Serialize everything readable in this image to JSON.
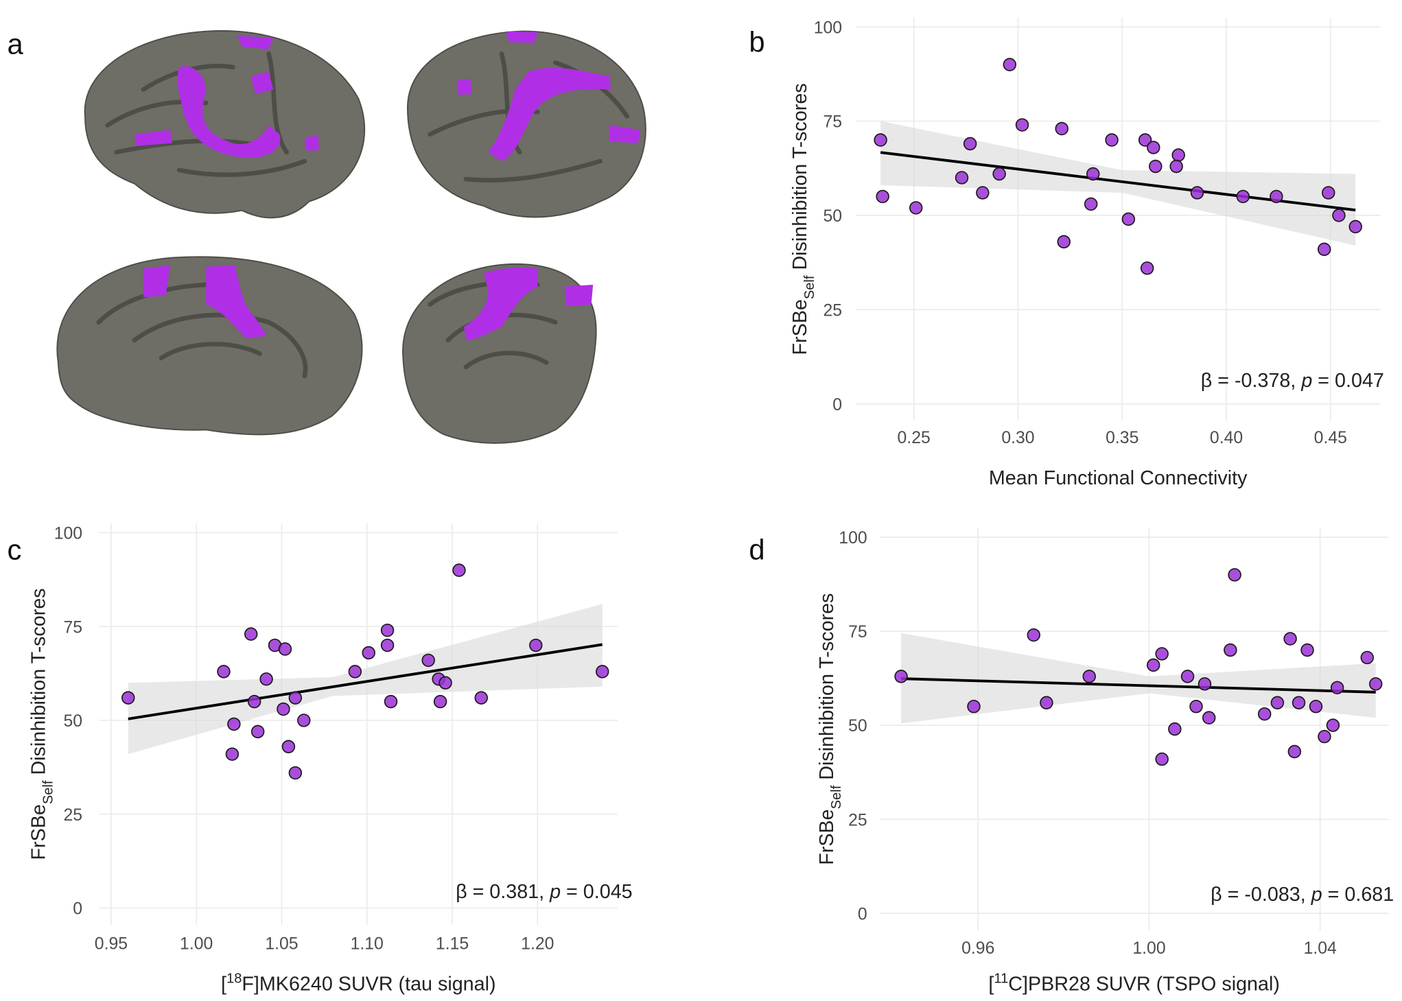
{
  "brain_panel": {
    "panel": "a"
  },
  "chart_data": [
    {
      "type": "scatter",
      "panel": "b",
      "xlabel": [
        {
          "text": "Mean Functional Connectivity"
        }
      ],
      "ylabel": [
        {
          "text": "FrSBe"
        },
        {
          "text": "Self",
          "sub": true
        },
        {
          "text": " Disinhibition T-scores"
        }
      ],
      "annotation": [
        {
          "text": "β  = -0.378, "
        },
        {
          "text": "p",
          "italic": true
        },
        {
          "text": " = 0.047"
        }
      ],
      "color": "#9b30d6",
      "grid": true,
      "xlim": [
        0.222,
        0.474
      ],
      "ylim": [
        -4.5,
        102.5
      ],
      "xticks": [
        0.25,
        {
          "value": 0.3,
          "label": "0.30"
        },
        0.35,
        {
          "value": 0.4,
          "label": "0.40"
        },
        0.45
      ],
      "yticks": [
        0,
        25,
        50,
        75,
        100
      ],
      "x": [
        0.234,
        0.235,
        0.251,
        0.277,
        0.273,
        0.283,
        0.291,
        0.296,
        0.302,
        0.321,
        0.322,
        0.335,
        0.336,
        0.345,
        0.353,
        0.361,
        0.365,
        0.366,
        0.362,
        0.377,
        0.376,
        0.386,
        0.408,
        0.424,
        0.449,
        0.447,
        0.454,
        0.462
      ],
      "values": [
        70,
        55,
        52,
        69,
        60,
        56,
        61,
        90,
        74,
        73,
        43,
        53,
        61,
        70,
        49,
        70,
        68,
        63,
        36,
        66,
        63,
        56,
        55,
        55,
        56,
        41,
        50,
        47
      ],
      "fit": {
        "x": [
          0.234,
          0.462
        ],
        "y": [
          66.7,
          51.4
        ]
      },
      "band": {
        "x": [
          0.234,
          0.35,
          0.462
        ],
        "lower": [
          58,
          56,
          42
        ],
        "upper": [
          75,
          62,
          61
        ]
      }
    },
    {
      "type": "scatter",
      "panel": "c",
      "xlabel": [
        {
          "text": "["
        },
        {
          "text": "18",
          "sup": true
        },
        {
          "text": "F]MK6240 SUVR (tau signal)"
        }
      ],
      "ylabel": [
        {
          "text": "FrSBe"
        },
        {
          "text": "Self",
          "sub": true
        },
        {
          "text": " Disinhibition T-scores"
        }
      ],
      "annotation": [
        {
          "text": "β = 0.381, "
        },
        {
          "text": "p",
          "italic": true
        },
        {
          "text": " = 0.045"
        }
      ],
      "color": "#9b30d6",
      "grid": true,
      "xlim": [
        0.943,
        1.247
      ],
      "ylim": [
        -4.5,
        102.5
      ],
      "xticks": [
        0.95,
        {
          "value": 1,
          "label": "1.00"
        },
        1.05,
        {
          "value": 1.1,
          "label": "1.10"
        },
        1.15,
        {
          "value": 1.2,
          "label": "1.20"
        }
      ],
      "yticks": [
        0,
        25,
        50,
        75,
        100
      ],
      "x": [
        0.96,
        1.016,
        1.032,
        1.046,
        1.052,
        1.041,
        1.034,
        1.022,
        1.021,
        1.036,
        1.051,
        1.058,
        1.063,
        1.054,
        1.058,
        1.093,
        1.101,
        1.112,
        1.112,
        1.114,
        1.136,
        1.142,
        1.146,
        1.143,
        1.154,
        1.167,
        1.199,
        1.238
      ],
      "values": [
        56,
        63,
        73,
        70,
        69,
        61,
        55,
        49,
        41,
        47,
        53,
        56,
        50,
        43,
        36,
        63,
        68,
        74,
        70,
        55,
        66,
        61,
        60,
        55,
        90,
        56,
        70,
        63
      ],
      "fit": {
        "x": [
          0.96,
          1.238
        ],
        "y": [
          50.4,
          70.2
        ]
      },
      "band": {
        "x": [
          0.96,
          1.08,
          1.238
        ],
        "lower": [
          41,
          56.5,
          59
        ],
        "upper": [
          60,
          61.5,
          81
        ]
      }
    },
    {
      "type": "scatter",
      "panel": "d",
      "xlabel": [
        {
          "text": "["
        },
        {
          "text": "11",
          "sup": true
        },
        {
          "text": "C]PBR28 SUVR (TSPO signal)"
        }
      ],
      "ylabel": [
        {
          "text": "FrSBe"
        },
        {
          "text": "Self",
          "sub": true
        },
        {
          "text": " Disinhibition T-scores"
        }
      ],
      "annotation": [
        {
          "text": "β = -0.083, "
        },
        {
          "text": "p",
          "italic": true
        },
        {
          "text": " = 0.681"
        }
      ],
      "color": "#9b30d6",
      "grid": true,
      "xlim": [
        0.937,
        1.056
      ],
      "ylim": [
        -4.5,
        102.5
      ],
      "xticks": [
        0.96,
        {
          "value": 1,
          "label": "1.00"
        },
        1.04
      ],
      "yticks": [
        0,
        25,
        50,
        75,
        100
      ],
      "x": [
        0.942,
        0.959,
        0.973,
        0.976,
        0.986,
        1.001,
        1.003,
        1.003,
        1.006,
        1.009,
        1.011,
        1.013,
        1.014,
        1.019,
        1.02,
        1.027,
        1.03,
        1.033,
        1.034,
        1.035,
        1.037,
        1.039,
        1.041,
        1.043,
        1.044,
        1.051,
        1.053
      ],
      "values": [
        63,
        55,
        74,
        56,
        63,
        66,
        69,
        41,
        49,
        63,
        55,
        61,
        52,
        70,
        90,
        53,
        56,
        73,
        43,
        56,
        70,
        55,
        47,
        50,
        60,
        68,
        61
      ],
      "fit": {
        "x": [
          0.942,
          1.053
        ],
        "y": [
          62.4,
          58.8
        ]
      },
      "band": {
        "x": [
          0.942,
          1.0,
          1.053
        ],
        "lower": [
          50.5,
          58.5,
          52
        ],
        "upper": [
          74.5,
          63,
          66.5
        ]
      }
    }
  ]
}
